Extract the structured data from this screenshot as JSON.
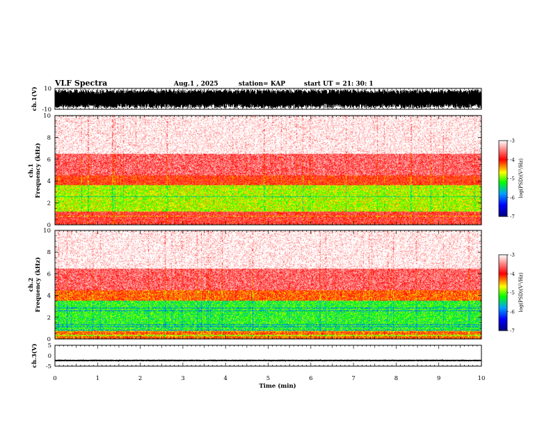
{
  "header": {
    "title": "VLF Spectra",
    "date": "Aug.1  , 2025",
    "station": "station= KAP",
    "start_time": "start  UT  =   21: 30: 1"
  },
  "colors": {
    "spectrogram_scale": [
      "#ffffff",
      "#ff0000",
      "#ffff00",
      "#00ff00",
      "#00a0ff",
      "#0000ff",
      "#000080"
    ]
  },
  "chart_data": [
    {
      "type": "line",
      "name": "ch.1 waveform",
      "ylabel": "ch.1(V)",
      "ylim": [
        -10,
        10
      ],
      "yticks": [
        "10",
        "-10"
      ],
      "xlim": [
        0,
        10
      ],
      "amplitude_range": [
        -9,
        9
      ]
    },
    {
      "type": "heatmap",
      "name": "ch.1 spectrogram",
      "ylabel": "ch.1\nFrequency  (kHz)",
      "ylabel_lines": [
        "ch.1",
        "Frequency  (kHz)"
      ],
      "ylim": [
        0,
        10
      ],
      "yticks": [
        "0",
        "2",
        "4",
        "6",
        "8",
        "10"
      ],
      "xlim": [
        0,
        10
      ],
      "colorbar": {
        "label": "log(PSD)(V²/Hz)",
        "range": [
          -7,
          -3
        ],
        "ticks": [
          "-3",
          "-4",
          "-5",
          "-6",
          "-7"
        ]
      },
      "bands": [
        {
          "from_khz": 0,
          "to_khz": 1.2,
          "level": -3.8
        },
        {
          "from_khz": 1.2,
          "to_khz": 3.6,
          "level": -4.8
        },
        {
          "from_khz": 3.6,
          "to_khz": 4.5,
          "level": -4.0
        },
        {
          "from_khz": 4.5,
          "to_khz": 6.5,
          "level": -3.6
        },
        {
          "from_khz": 6.5,
          "to_khz": 10,
          "level": -3.1
        }
      ]
    },
    {
      "type": "heatmap",
      "name": "ch.2 spectrogram",
      "ylabel": "ch.2\nFrequency  (kHz)",
      "ylabel_lines": [
        "ch.2",
        "Frequency  (kHz)"
      ],
      "ylim": [
        0,
        10
      ],
      "yticks": [
        "0",
        "2",
        "4",
        "6",
        "8",
        "10"
      ],
      "xlim": [
        0,
        10
      ],
      "colorbar": {
        "label": "log(PSD)(V²/Hz)",
        "range": [
          -7,
          -3
        ],
        "ticks": [
          "-3",
          "-4",
          "-5",
          "-6",
          "-7"
        ]
      },
      "bands": [
        {
          "from_khz": 0,
          "to_khz": 0.8,
          "level": -4.2
        },
        {
          "from_khz": 0.8,
          "to_khz": 3.5,
          "level": -5.2
        },
        {
          "from_khz": 3.5,
          "to_khz": 4.5,
          "level": -4.2
        },
        {
          "from_khz": 4.5,
          "to_khz": 6.5,
          "level": -3.6
        },
        {
          "from_khz": 6.5,
          "to_khz": 10,
          "level": -3.1
        }
      ]
    },
    {
      "type": "line",
      "name": "ch.3 waveform",
      "ylabel": "ch.3(V)",
      "ylim": [
        -5,
        5
      ],
      "yticks": [
        "5",
        "0",
        "-5"
      ],
      "xlim": [
        0,
        10
      ],
      "amplitude_range": [
        -0.4,
        0.4
      ],
      "offset": -2.3
    }
  ],
  "x_axis": {
    "label": "Time  (min)",
    "range": [
      0,
      10
    ],
    "ticks": [
      "0",
      "1",
      "2",
      "3",
      "4",
      "5",
      "6",
      "7",
      "8",
      "9",
      "10"
    ]
  }
}
